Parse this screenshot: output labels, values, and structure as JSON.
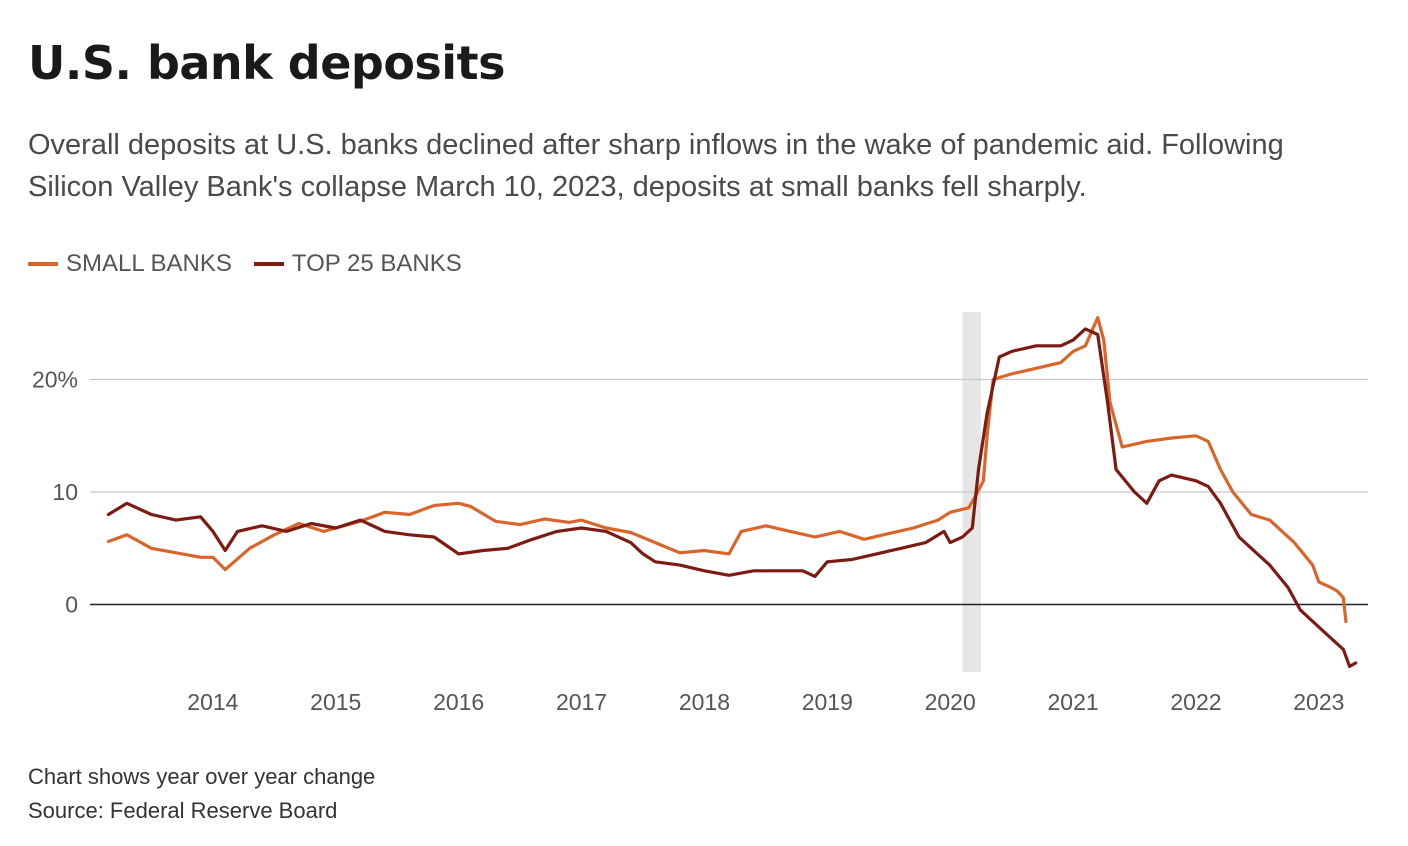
{
  "header": {
    "title": "U.S. bank deposits",
    "subtitle": "Overall deposits at U.S. banks declined after sharp inflows in the wake of pandemic aid. Following Silicon Valley Bank's collapse March 10, 2023, deposits at small banks fell sharply."
  },
  "footer": {
    "note": "Chart shows year over year change",
    "source": "Source: Federal Reserve Board"
  },
  "chart_data": {
    "type": "line",
    "xlim": [
      2013.0,
      2023.4
    ],
    "ylim": [
      -6,
      26
    ],
    "y_ticks": [
      0,
      10,
      20
    ],
    "y_tick_labels": [
      "0",
      "10",
      "20%"
    ],
    "x_ticks": [
      2014,
      2015,
      2016,
      2017,
      2018,
      2019,
      2020,
      2021,
      2022,
      2023
    ],
    "x_tick_labels": [
      "2014",
      "2015",
      "2016",
      "2017",
      "2018",
      "2019",
      "2020",
      "2021",
      "2022",
      "2023"
    ],
    "grid": true,
    "legend_position": "top-left",
    "shaded_region": [
      2020.1,
      2020.25
    ],
    "series": [
      {
        "name": "SMALL BANKS",
        "color": "#d9652b",
        "points": [
          [
            2013.15,
            5.6
          ],
          [
            2013.3,
            6.2
          ],
          [
            2013.5,
            5.0
          ],
          [
            2013.7,
            4.6
          ],
          [
            2013.9,
            4.2
          ],
          [
            2014.0,
            4.2
          ],
          [
            2014.1,
            3.1
          ],
          [
            2014.3,
            5.0
          ],
          [
            2014.5,
            6.2
          ],
          [
            2014.7,
            7.2
          ],
          [
            2014.9,
            6.5
          ],
          [
            2015.0,
            6.8
          ],
          [
            2015.2,
            7.4
          ],
          [
            2015.4,
            8.2
          ],
          [
            2015.6,
            8.0
          ],
          [
            2015.8,
            8.8
          ],
          [
            2016.0,
            9.0
          ],
          [
            2016.1,
            8.7
          ],
          [
            2016.3,
            7.4
          ],
          [
            2016.5,
            7.1
          ],
          [
            2016.7,
            7.6
          ],
          [
            2016.9,
            7.3
          ],
          [
            2017.0,
            7.5
          ],
          [
            2017.2,
            6.8
          ],
          [
            2017.4,
            6.4
          ],
          [
            2017.6,
            5.5
          ],
          [
            2017.8,
            4.6
          ],
          [
            2018.0,
            4.8
          ],
          [
            2018.2,
            4.5
          ],
          [
            2018.3,
            6.5
          ],
          [
            2018.5,
            7.0
          ],
          [
            2018.7,
            6.5
          ],
          [
            2018.9,
            6.0
          ],
          [
            2019.1,
            6.5
          ],
          [
            2019.3,
            5.8
          ],
          [
            2019.5,
            6.3
          ],
          [
            2019.7,
            6.8
          ],
          [
            2019.9,
            7.5
          ],
          [
            2020.0,
            8.2
          ],
          [
            2020.15,
            8.6
          ],
          [
            2020.2,
            9.5
          ],
          [
            2020.27,
            11.0
          ],
          [
            2020.3,
            15.0
          ],
          [
            2020.35,
            20.0
          ],
          [
            2020.5,
            20.5
          ],
          [
            2020.7,
            21.0
          ],
          [
            2020.9,
            21.5
          ],
          [
            2021.0,
            22.5
          ],
          [
            2021.1,
            23.0
          ],
          [
            2021.2,
            25.5
          ],
          [
            2021.25,
            23.5
          ],
          [
            2021.3,
            18.0
          ],
          [
            2021.4,
            14.0
          ],
          [
            2021.6,
            14.5
          ],
          [
            2021.8,
            14.8
          ],
          [
            2022.0,
            15.0
          ],
          [
            2022.1,
            14.5
          ],
          [
            2022.2,
            12.0
          ],
          [
            2022.3,
            10.0
          ],
          [
            2022.45,
            8.0
          ],
          [
            2022.6,
            7.5
          ],
          [
            2022.8,
            5.5
          ],
          [
            2022.95,
            3.5
          ],
          [
            2023.0,
            2.0
          ],
          [
            2023.1,
            1.5
          ],
          [
            2023.15,
            1.2
          ],
          [
            2023.2,
            0.6
          ],
          [
            2023.22,
            -1.5
          ]
        ]
      },
      {
        "name": "TOP 25 BANKS",
        "color": "#7d1a12",
        "points": [
          [
            2013.15,
            8.0
          ],
          [
            2013.3,
            9.0
          ],
          [
            2013.5,
            8.0
          ],
          [
            2013.7,
            7.5
          ],
          [
            2013.9,
            7.8
          ],
          [
            2014.0,
            6.5
          ],
          [
            2014.1,
            4.8
          ],
          [
            2014.2,
            6.5
          ],
          [
            2014.4,
            7.0
          ],
          [
            2014.6,
            6.5
          ],
          [
            2014.8,
            7.2
          ],
          [
            2015.0,
            6.8
          ],
          [
            2015.2,
            7.5
          ],
          [
            2015.4,
            6.5
          ],
          [
            2015.6,
            6.2
          ],
          [
            2015.8,
            6.0
          ],
          [
            2016.0,
            4.5
          ],
          [
            2016.2,
            4.8
          ],
          [
            2016.4,
            5.0
          ],
          [
            2016.6,
            5.8
          ],
          [
            2016.8,
            6.5
          ],
          [
            2017.0,
            6.8
          ],
          [
            2017.2,
            6.5
          ],
          [
            2017.4,
            5.5
          ],
          [
            2017.5,
            4.5
          ],
          [
            2017.6,
            3.8
          ],
          [
            2017.8,
            3.5
          ],
          [
            2018.0,
            3.0
          ],
          [
            2018.2,
            2.6
          ],
          [
            2018.4,
            3.0
          ],
          [
            2018.6,
            3.0
          ],
          [
            2018.8,
            3.0
          ],
          [
            2018.9,
            2.5
          ],
          [
            2019.0,
            3.8
          ],
          [
            2019.2,
            4.0
          ],
          [
            2019.4,
            4.5
          ],
          [
            2019.6,
            5.0
          ],
          [
            2019.8,
            5.5
          ],
          [
            2019.95,
            6.5
          ],
          [
            2020.0,
            5.5
          ],
          [
            2020.1,
            6.0
          ],
          [
            2020.18,
            6.8
          ],
          [
            2020.23,
            12.0
          ],
          [
            2020.3,
            17.0
          ],
          [
            2020.4,
            22.0
          ],
          [
            2020.5,
            22.5
          ],
          [
            2020.7,
            23.0
          ],
          [
            2020.9,
            23.0
          ],
          [
            2021.0,
            23.5
          ],
          [
            2021.1,
            24.5
          ],
          [
            2021.2,
            24.0
          ],
          [
            2021.28,
            18.0
          ],
          [
            2021.35,
            12.0
          ],
          [
            2021.5,
            10.0
          ],
          [
            2021.6,
            9.0
          ],
          [
            2021.7,
            11.0
          ],
          [
            2021.8,
            11.5
          ],
          [
            2022.0,
            11.0
          ],
          [
            2022.1,
            10.5
          ],
          [
            2022.2,
            9.0
          ],
          [
            2022.35,
            6.0
          ],
          [
            2022.5,
            4.5
          ],
          [
            2022.6,
            3.5
          ],
          [
            2022.75,
            1.5
          ],
          [
            2022.85,
            -0.5
          ],
          [
            2023.0,
            -2.0
          ],
          [
            2023.1,
            -3.0
          ],
          [
            2023.2,
            -4.0
          ],
          [
            2023.25,
            -5.5
          ],
          [
            2023.3,
            -5.2
          ]
        ]
      }
    ]
  }
}
